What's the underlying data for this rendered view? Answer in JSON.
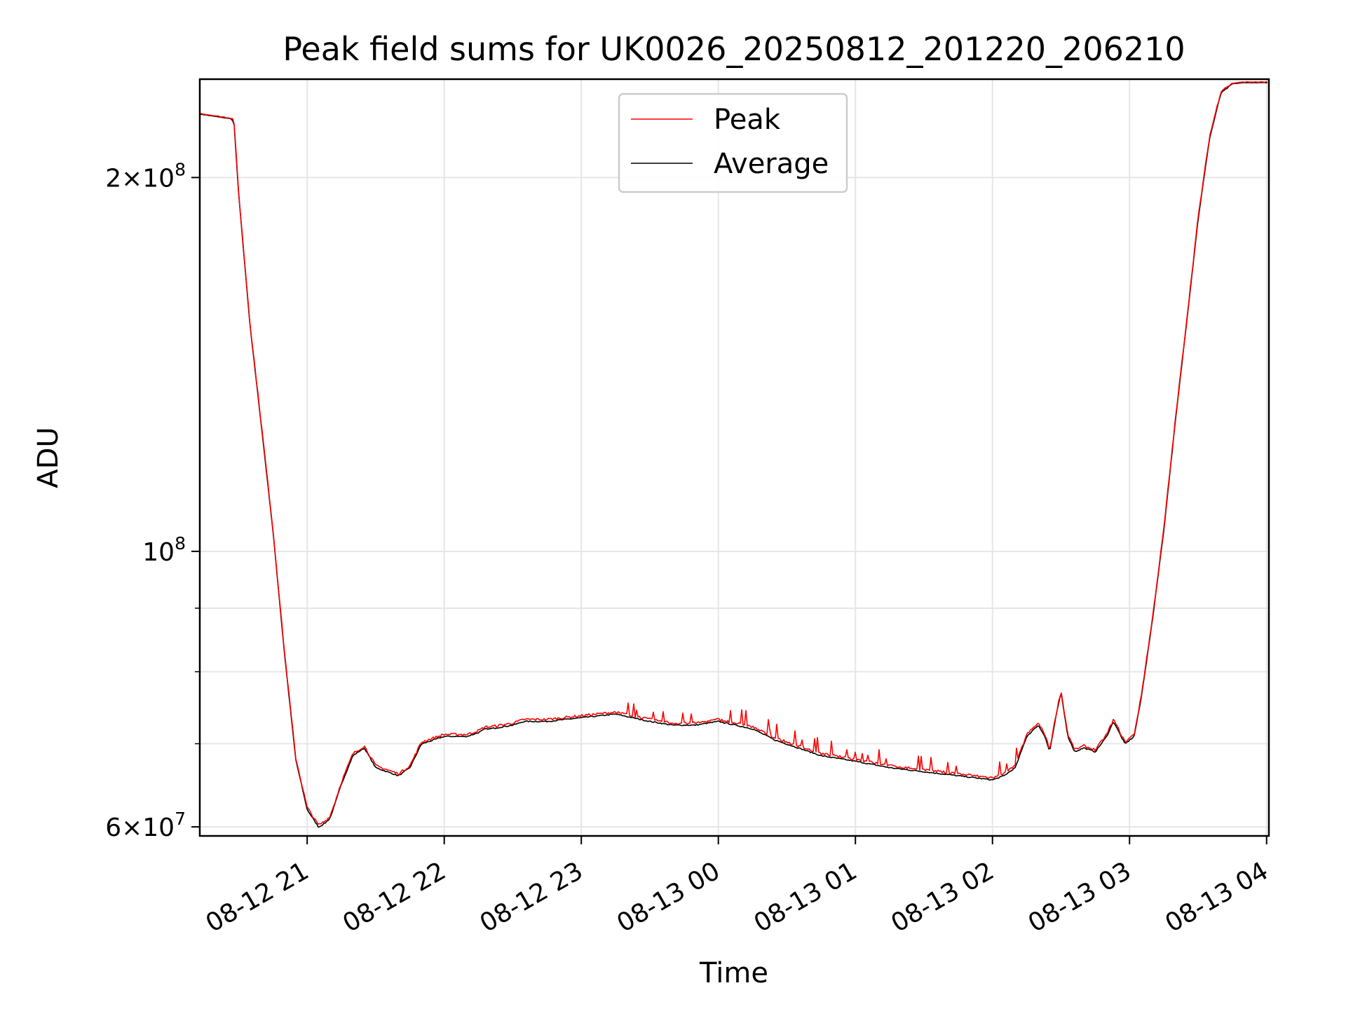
{
  "chart_data": {
    "type": "line",
    "title": "Peak field sums for UK0026_20250812_201220_206210",
    "xlabel": "Time",
    "ylabel": "ADU",
    "y_scale": "log",
    "grid": true,
    "legend_position": "top-center",
    "xlim": [
      "2025-08-12T20:13:00",
      "2025-08-13T04:01:00"
    ],
    "ylim": [
      59000000,
      240000000
    ],
    "x_ticks": [
      {
        "value": "2025-08-12T21:00:00",
        "label": "08-12 21"
      },
      {
        "value": "2025-08-12T22:00:00",
        "label": "08-12 22"
      },
      {
        "value": "2025-08-12T23:00:00",
        "label": "08-12 23"
      },
      {
        "value": "2025-08-13T00:00:00",
        "label": "08-13 00"
      },
      {
        "value": "2025-08-13T01:00:00",
        "label": "08-13 01"
      },
      {
        "value": "2025-08-13T02:00:00",
        "label": "08-13 02"
      },
      {
        "value": "2025-08-13T03:00:00",
        "label": "08-13 03"
      },
      {
        "value": "2025-08-13T04:00:00",
        "label": "08-13 04"
      }
    ],
    "y_major_ticks": [
      {
        "value": 60000000,
        "mantissa": "6",
        "exponent": "7"
      },
      {
        "value": 100000000,
        "mantissa": "",
        "exponent": "8"
      },
      {
        "value": 200000000,
        "mantissa": "2",
        "exponent": "8"
      }
    ],
    "y_minor_ticks": [
      70000000,
      80000000,
      90000000
    ],
    "base_label": "10",
    "times_label": "×",
    "series": [
      {
        "name": "Peak",
        "color": "#ff0000",
        "offsets": [
          0.4,
          2.6
        ],
        "spikes": true
      },
      {
        "name": "Average",
        "color": "#000000",
        "offsets": [
          -0.8,
          0.2
        ],
        "spikes": false
      }
    ],
    "x": [
      "2025-08-12T20:13:00",
      "2025-08-12T20:20:00",
      "2025-08-12T20:27:00",
      "2025-08-12T20:28:00",
      "2025-08-12T20:30:00",
      "2025-08-12T20:35:00",
      "2025-08-12T20:40:00",
      "2025-08-12T20:45:00",
      "2025-08-12T20:50:00",
      "2025-08-12T20:55:00",
      "2025-08-12T21:00:00",
      "2025-08-12T21:05:00",
      "2025-08-12T21:08:00",
      "2025-08-12T21:10:00",
      "2025-08-12T21:12:00",
      "2025-08-12T21:15:00",
      "2025-08-12T21:20:00",
      "2025-08-12T21:25:00",
      "2025-08-12T21:30:00",
      "2025-08-12T21:35:00",
      "2025-08-12T21:40:00",
      "2025-08-12T21:45:00",
      "2025-08-12T21:50:00",
      "2025-08-12T22:00:00",
      "2025-08-12T22:10:00",
      "2025-08-12T22:15:00",
      "2025-08-12T22:18:00",
      "2025-08-12T22:20:00",
      "2025-08-12T22:30:00",
      "2025-08-12T22:35:00",
      "2025-08-12T22:45:00",
      "2025-08-12T23:00:00",
      "2025-08-12T23:15:00",
      "2025-08-12T23:30:00",
      "2025-08-12T23:40:00",
      "2025-08-12T23:50:00",
      "2025-08-13T00:00:00",
      "2025-08-13T00:15:00",
      "2025-08-13T00:25:00",
      "2025-08-13T00:35:00",
      "2025-08-13T00:45:00",
      "2025-08-13T01:00:00",
      "2025-08-13T01:15:00",
      "2025-08-13T01:30:00",
      "2025-08-13T01:45:00",
      "2025-08-13T02:00:00",
      "2025-08-13T02:05:00",
      "2025-08-13T02:10:00",
      "2025-08-13T02:15:00",
      "2025-08-13T02:20:00",
      "2025-08-13T02:23:00",
      "2025-08-13T02:25:00",
      "2025-08-13T02:28:00",
      "2025-08-13T02:30:00",
      "2025-08-13T02:33:00",
      "2025-08-13T02:36:00",
      "2025-08-13T02:40:00",
      "2025-08-13T02:45:00",
      "2025-08-13T02:50:00",
      "2025-08-13T02:53:00",
      "2025-08-13T02:58:00",
      "2025-08-13T03:02:00",
      "2025-08-13T03:05:00",
      "2025-08-13T03:10:00",
      "2025-08-13T03:15:00",
      "2025-08-13T03:20:00",
      "2025-08-13T03:25:00",
      "2025-08-13T03:30:00",
      "2025-08-13T03:35:00",
      "2025-08-13T03:40:00",
      "2025-08-13T03:45:00",
      "2025-08-13T03:50:00",
      "2025-08-13T04:01:00"
    ],
    "y": [
      225000000,
      224000000,
      223000000,
      221000000,
      194000000,
      152000000,
      126000000,
      104000000,
      83000000,
      68000000,
      62000000,
      60000000,
      60500000,
      61000000,
      62500000,
      65000000,
      68500000,
      69500000,
      67000000,
      66500000,
      66000000,
      67000000,
      70000000,
      71000000,
      71000000,
      71500000,
      72000000,
      72000000,
      72500000,
      73000000,
      73000000,
      73500000,
      74000000,
      73000000,
      72500000,
      72500000,
      73000000,
      72000000,
      70500000,
      69500000,
      68500000,
      67800000,
      67000000,
      66500000,
      66000000,
      65500000,
      66000000,
      67000000,
      71000000,
      72500000,
      71000000,
      69000000,
      74000000,
      77000000,
      71000000,
      69000000,
      69500000,
      69000000,
      71000000,
      73000000,
      70000000,
      71000000,
      76000000,
      88000000,
      104000000,
      127000000,
      153000000,
      185000000,
      215000000,
      234000000,
      238000000,
      238500000,
      238500000
    ]
  }
}
